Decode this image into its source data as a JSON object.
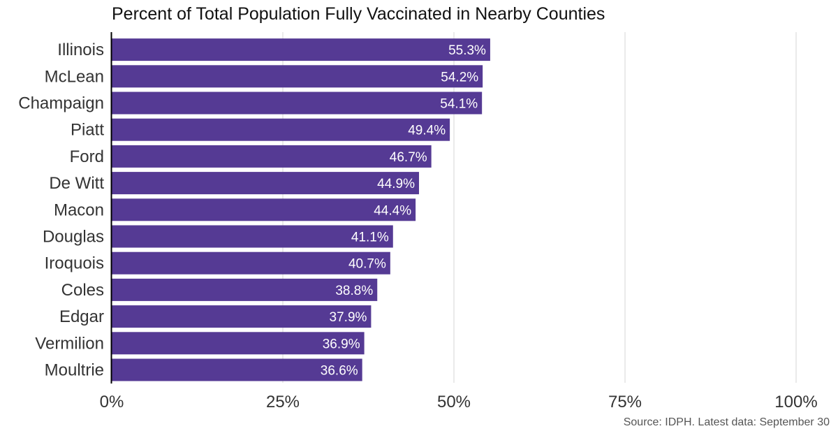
{
  "chart_data": {
    "type": "bar",
    "orientation": "horizontal",
    "title": "Percent of Total Population Fully Vaccinated in Nearby Counties",
    "categories": [
      "Illinois",
      "McLean",
      "Champaign",
      "Piatt",
      "Ford",
      "De Witt",
      "Macon",
      "Douglas",
      "Iroquois",
      "Coles",
      "Edgar",
      "Vermilion",
      "Moultrie"
    ],
    "values": [
      55.3,
      54.2,
      54.1,
      49.4,
      46.7,
      44.9,
      44.4,
      41.1,
      40.7,
      38.8,
      37.9,
      36.9,
      36.6
    ],
    "value_labels": [
      "55.3%",
      "54.2%",
      "54.1%",
      "49.4%",
      "46.7%",
      "44.9%",
      "44.4%",
      "41.1%",
      "40.7%",
      "38.8%",
      "37.9%",
      "36.9%",
      "36.6%"
    ],
    "xlim": [
      0,
      100
    ],
    "xticks": [
      0,
      25,
      50,
      75,
      100
    ],
    "xtick_labels": [
      "0%",
      "25%",
      "50%",
      "75%",
      "100%"
    ],
    "xlabel": "",
    "ylabel": "",
    "grid": "vertical",
    "bar_color": "#553a94",
    "grid_color": "#e3e3e3"
  },
  "source": "Source: IDPH. Latest data: September 30"
}
